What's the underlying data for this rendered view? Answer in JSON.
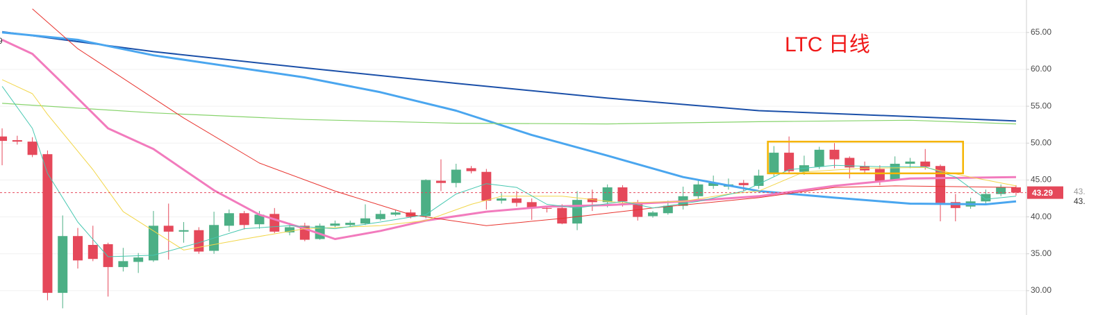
{
  "chart_data": {
    "type": "candlestick",
    "annotation": "LTC 日线",
    "annotation_color": "#f01818",
    "xlim": [
      -0.14,
      67.69
    ],
    "ylim": [
      26.7,
      69.4
    ],
    "yticks": [
      {
        "value": 30,
        "label": "30.00"
      },
      {
        "value": 35,
        "label": "35.00"
      },
      {
        "value": 40,
        "label": "40.00"
      },
      {
        "value": 45,
        "label": "45.00"
      },
      {
        "value": 50,
        "label": "50.00"
      },
      {
        "value": 55,
        "label": "55.00"
      },
      {
        "value": 60,
        "label": "60.00"
      },
      {
        "value": 65,
        "label": "65.00"
      }
    ],
    "grid": true,
    "up_color": "#4caf85",
    "down_color": "#e5485a",
    "open": [
      50.9,
      50.4,
      50.2,
      48.5,
      29.7,
      37.4,
      36.2,
      36.3,
      33.2,
      33.9,
      34.1,
      38.8,
      38.0,
      38.2,
      35.4,
      38.8,
      40.5,
      39.0,
      40.4,
      37.9,
      38.8,
      37.0,
      38.8,
      38.9,
      39.1,
      39.7,
      40.3,
      40.6,
      40.1,
      44.9,
      44.6,
      46.6,
      46.1,
      42.2,
      42.5,
      42.0,
      41.2,
      41.2,
      39.1,
      42.5,
      42.0,
      44.0,
      42.0,
      40.1,
      40.5,
      41.5,
      42.8,
      44.2,
      44.1,
      44.6,
      44.2,
      45.9,
      48.7,
      46.1,
      46.8,
      49.1,
      48.0,
      46.9,
      46.5,
      45.0,
      47.2,
      47.5,
      46.9,
      42.0,
      41.4,
      42.1,
      43.1,
      44.0
    ],
    "high": [
      52.0,
      51.0,
      50.8,
      49.0,
      40.2,
      38.5,
      38.8,
      36.5,
      35.8,
      35.1,
      40.8,
      41.8,
      39.3,
      38.6,
      40.7,
      41.0,
      40.8,
      40.8,
      41.2,
      39.2,
      39.2,
      39.1,
      39.5,
      39.5,
      41.7,
      40.9,
      40.9,
      41.0,
      45.1,
      47.8,
      47.2,
      46.9,
      46.5,
      43.2,
      43.5,
      42.5,
      41.5,
      41.7,
      43.5,
      43.7,
      44.4,
      44.3,
      42.3,
      40.8,
      42.2,
      44.1,
      45.0,
      45.6,
      45.2,
      45.0,
      46.4,
      49.6,
      50.9,
      48.3,
      49.5,
      50.0,
      48.2,
      47.5,
      47.0,
      48.2,
      48.0,
      49.2,
      47.1,
      43.1,
      42.6,
      43.7,
      44.4,
      44.3
    ],
    "low": [
      47.0,
      49.8,
      48.1,
      28.7,
      27.6,
      33.0,
      34.0,
      29.2,
      32.6,
      32.4,
      33.9,
      34.2,
      36.5,
      35.0,
      35.0,
      38.0,
      38.3,
      38.4,
      37.8,
      37.5,
      36.7,
      36.9,
      38.6,
      38.7,
      38.9,
      39.5,
      40.1,
      39.8,
      39.8,
      43.5,
      44.0,
      45.9,
      41.0,
      41.8,
      41.4,
      39.6,
      40.6,
      39.0,
      38.2,
      40.8,
      41.3,
      41.4,
      39.5,
      39.9,
      40.3,
      41.0,
      42.4,
      43.8,
      43.7,
      43.5,
      43.8,
      45.5,
      45.9,
      45.7,
      46.5,
      46.6,
      45.2,
      45.8,
      44.3,
      44.9,
      46.6,
      46.4,
      39.4,
      39.4,
      41.1,
      41.7,
      42.8,
      42.9
    ],
    "close": [
      50.3,
      50.2,
      48.4,
      29.7,
      37.4,
      34.1,
      34.3,
      33.2,
      34.0,
      34.5,
      38.8,
      38.0,
      38.2,
      35.3,
      38.9,
      40.5,
      38.9,
      40.3,
      38.0,
      38.6,
      36.9,
      38.8,
      39.1,
      39.2,
      39.8,
      40.4,
      40.6,
      40.0,
      45.0,
      44.6,
      46.4,
      46.2,
      42.2,
      42.5,
      41.9,
      41.2,
      41.1,
      39.1,
      42.3,
      42.0,
      44.0,
      42.1,
      40.0,
      40.6,
      41.5,
      42.8,
      44.4,
      44.6,
      44.4,
      44.3,
      45.6,
      48.7,
      46.2,
      47.0,
      49.1,
      47.8,
      46.7,
      46.3,
      44.8,
      47.2,
      47.5,
      46.8,
      41.9,
      41.2,
      42.1,
      43.1,
      44.0,
      43.29
    ],
    "moving_averages": [
      {
        "color": "#1a4fa8",
        "width": 2,
        "x": [
          0,
          10,
          20,
          30,
          40,
          50,
          60,
          67
        ],
        "values": [
          65.1,
          62.4,
          60.2,
          58.1,
          56.1,
          54.4,
          53.6,
          53.0
        ]
      },
      {
        "color": "#4aa6ef",
        "width": 3,
        "x": [
          0,
          5,
          10,
          15,
          20,
          25,
          30,
          35,
          40,
          45,
          50,
          55,
          60,
          65,
          67
        ],
        "values": [
          65.0,
          64.0,
          61.9,
          60.4,
          58.9,
          56.9,
          54.4,
          51.1,
          48.3,
          45.4,
          43.5,
          42.6,
          41.8,
          41.7,
          42.1
        ]
      },
      {
        "color": "#86d36b",
        "width": 1.2,
        "x": [
          0,
          10,
          20,
          30,
          40,
          50,
          60,
          67
        ],
        "values": [
          55.4,
          54.1,
          53.2,
          52.7,
          52.6,
          52.9,
          53.1,
          52.6
        ]
      },
      {
        "color": "#f27bbd",
        "width": 3,
        "x": [
          0,
          2,
          4,
          7,
          10,
          14,
          17,
          20,
          22,
          25,
          28,
          32,
          36,
          40,
          45,
          50,
          55,
          60,
          67
        ],
        "values": [
          64.0,
          62.1,
          58.1,
          52.0,
          49.2,
          43.6,
          40.3,
          38.4,
          37.0,
          38.1,
          39.5,
          40.7,
          41.4,
          41.6,
          42.1,
          42.8,
          44.2,
          45.2,
          45.4
        ]
      },
      {
        "color": "#e8322d",
        "width": 1,
        "x": [
          2,
          5,
          12,
          17,
          22,
          27,
          32,
          37,
          43,
          50,
          55,
          59,
          67
        ],
        "values": [
          68.2,
          62.8,
          53.4,
          47.3,
          43.5,
          40.3,
          38.8,
          39.8,
          41.2,
          42.6,
          44.0,
          44.2,
          44.0
        ]
      },
      {
        "color": "#f2d64a",
        "width": 1,
        "x": [
          0,
          2,
          3,
          6,
          8,
          12,
          16,
          20,
          25,
          28,
          31,
          33,
          37,
          41,
          45,
          48,
          50,
          53,
          57,
          61,
          64,
          67
        ],
        "values": [
          58.6,
          56.7,
          53.9,
          46.4,
          40.7,
          35.5,
          37.0,
          38.4,
          38.8,
          39.5,
          41.7,
          42.8,
          42.8,
          41.9,
          42.1,
          43.1,
          43.5,
          46.1,
          46.6,
          46.7,
          45.4,
          44.2
        ]
      },
      {
        "color": "#45c7b0",
        "width": 1,
        "x": [
          0,
          2,
          3,
          5,
          7,
          10,
          13,
          16,
          19,
          22,
          25,
          28,
          30,
          32,
          34,
          36,
          38,
          41,
          43,
          46,
          49,
          52,
          55,
          58,
          61,
          63,
          65,
          67
        ],
        "values": [
          57.7,
          52.0,
          45.9,
          39.3,
          34.6,
          34.8,
          36.5,
          38.4,
          38.8,
          38.4,
          39.3,
          40.3,
          43.1,
          44.5,
          44.0,
          41.7,
          41.2,
          42.1,
          41.2,
          42.1,
          43.5,
          46.4,
          47.0,
          46.8,
          46.8,
          45.4,
          42.4,
          42.8
        ]
      }
    ],
    "highlight_box": {
      "color": "#f5b400",
      "x": [
        50.6,
        63.5
      ],
      "y": [
        45.9,
        50.2
      ]
    },
    "last_price": 43.29,
    "edge_labels": [
      "9",
      "43.",
      "43."
    ]
  }
}
